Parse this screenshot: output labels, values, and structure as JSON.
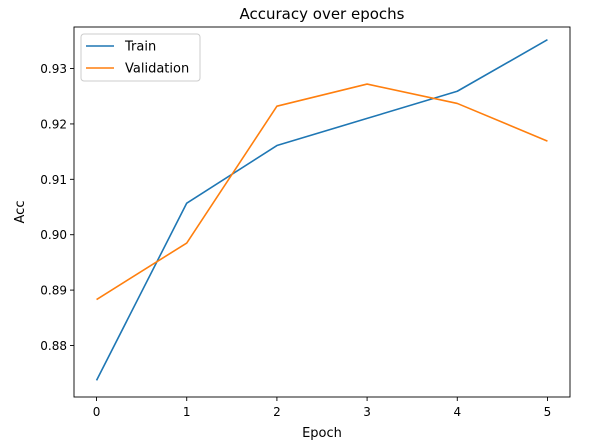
{
  "chart_data": {
    "type": "line",
    "title": "Accuracy over epochs",
    "xlabel": "Epoch",
    "ylabel": "Acc",
    "x": [
      0,
      1,
      2,
      3,
      4,
      5
    ],
    "xticks": [
      "0",
      "1",
      "2",
      "3",
      "4",
      "5"
    ],
    "yticks": [
      "0.88",
      "0.89",
      "0.90",
      "0.91",
      "0.92",
      "0.93"
    ],
    "ytick_values": [
      0.88,
      0.89,
      0.9,
      0.91,
      0.92,
      0.93
    ],
    "xlim": [
      -0.25,
      5.25
    ],
    "ylim": [
      0.8707,
      0.9375
    ],
    "grid": false,
    "legend_position": "top-left",
    "series": [
      {
        "name": "Train",
        "color": "#1f77b4",
        "values": [
          0.8737,
          0.9057,
          0.9161,
          0.921,
          0.9259,
          0.9352
        ]
      },
      {
        "name": "Validation",
        "color": "#ff7f0e",
        "values": [
          0.8883,
          0.8985,
          0.9232,
          0.9272,
          0.9237,
          0.9169
        ]
      }
    ]
  }
}
